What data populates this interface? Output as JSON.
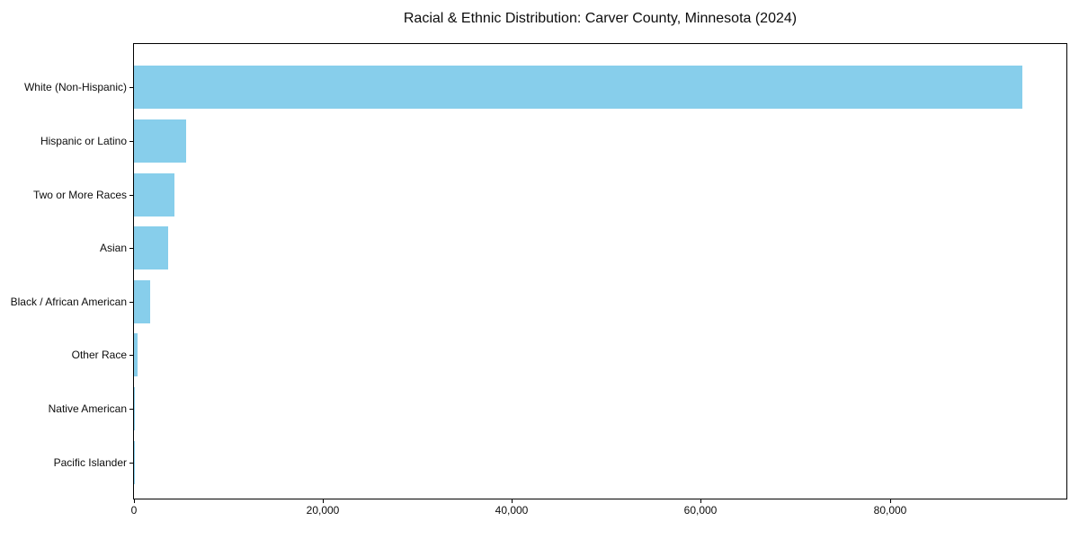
{
  "chart_data": {
    "type": "bar",
    "orientation": "horizontal",
    "title": "Racial & Ethnic Distribution: Carver County, Minnesota (2024)",
    "categories": [
      "White (Non-Hispanic)",
      "Hispanic or Latino",
      "Two or More Races",
      "Asian",
      "Black / African American",
      "Other Race",
      "Native American",
      "Pacific Islander"
    ],
    "values": [
      94000,
      5500,
      4300,
      3600,
      1700,
      350,
      120,
      40
    ],
    "xlabel": "",
    "ylabel": "",
    "xlim": [
      0,
      98700
    ],
    "x_ticks": [
      {
        "value": 0,
        "label": "0"
      },
      {
        "value": 20000,
        "label": "20,000"
      },
      {
        "value": 40000,
        "label": "40,000"
      },
      {
        "value": 60000,
        "label": "60,000"
      },
      {
        "value": 80000,
        "label": "80,000"
      }
    ],
    "bar_color": "#87CEEB",
    "spine_color": "#000000",
    "text_color": "#0d0d0d",
    "background_color": "#ffffff",
    "grid": false,
    "legend": false
  }
}
